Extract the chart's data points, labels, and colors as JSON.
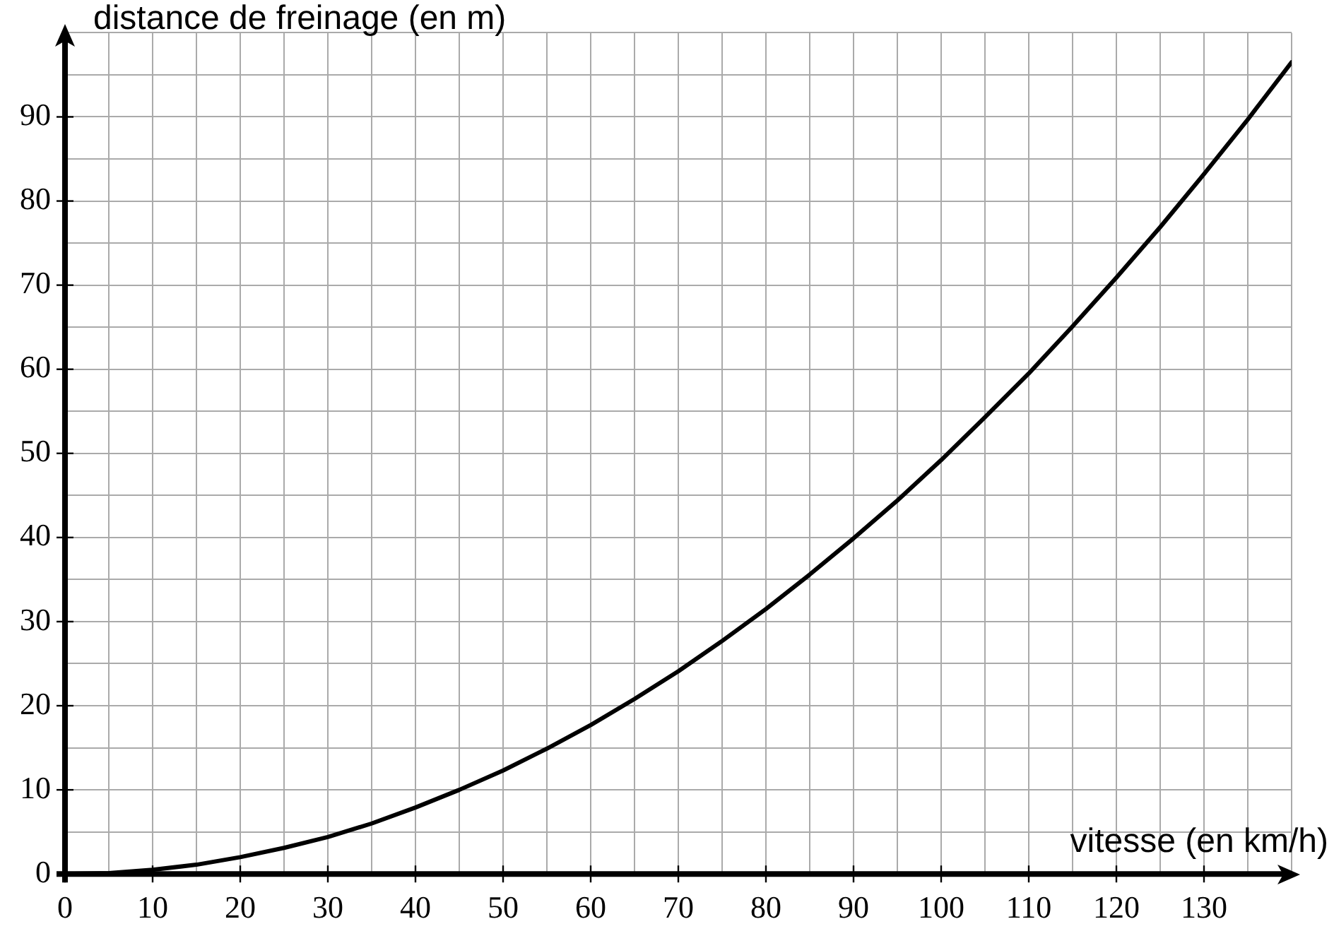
{
  "chart_data": {
    "type": "line",
    "title": "distance de freinage (en m)",
    "xlabel": "vitesse (en km/h)",
    "x": [
      0,
      5,
      10,
      15,
      20,
      25,
      30,
      35,
      40,
      45,
      50,
      55,
      60,
      65,
      70,
      75,
      80,
      85,
      90,
      95,
      100,
      105,
      110,
      115,
      120,
      125,
      130,
      135,
      140
    ],
    "series": [
      {
        "color": "#000000",
        "values": [
          0,
          0.1,
          0.5,
          1.1,
          2.0,
          3.1,
          4.4,
          6.0,
          7.9,
          10.0,
          12.3,
          14.9,
          17.7,
          20.8,
          24.1,
          27.7,
          31.5,
          35.6,
          39.9,
          44.4,
          49.2,
          54.3,
          59.5,
          65.1,
          70.9,
          76.9,
          83.2,
          89.7,
          96.5
        ]
      }
    ],
    "xlim": [
      0,
      140
    ],
    "ylim": [
      0,
      100
    ],
    "xticks": [
      0,
      {
        "value": 5,
        "label": null
      },
      10,
      {
        "value": 15,
        "label": null
      },
      20,
      {
        "value": 25,
        "label": null
      },
      30,
      {
        "value": 35,
        "label": null
      },
      40,
      {
        "value": 45,
        "label": null
      },
      50,
      {
        "value": 55,
        "label": null
      },
      60,
      {
        "value": 65,
        "label": null
      },
      70,
      {
        "value": 75,
        "label": null
      },
      80,
      {
        "value": 85,
        "label": null
      },
      90,
      {
        "value": 95,
        "label": null
      },
      100,
      {
        "value": 105,
        "label": null
      },
      110,
      {
        "value": 115,
        "label": null
      },
      120,
      {
        "value": 125,
        "label": null
      },
      130,
      {
        "value": 135,
        "label": null
      },
      {
        "value": 140,
        "label": null
      }
    ],
    "yticks": [
      0,
      {
        "value": 5,
        "label": null
      },
      10,
      {
        "value": 15,
        "label": null
      },
      20,
      {
        "value": 25,
        "label": null
      },
      30,
      {
        "value": 35,
        "label": null
      },
      40,
      {
        "value": 45,
        "label": null
      },
      50,
      {
        "value": 55,
        "label": null
      },
      60,
      {
        "value": 65,
        "label": null
      },
      70,
      {
        "value": 75,
        "label": null
      },
      80,
      {
        "value": 85,
        "label": null
      },
      90,
      {
        "value": 95,
        "label": null
      },
      {
        "value": 100,
        "label": null
      }
    ],
    "grid": true,
    "marker": "none",
    "line_style": "solid",
    "legend": false
  }
}
